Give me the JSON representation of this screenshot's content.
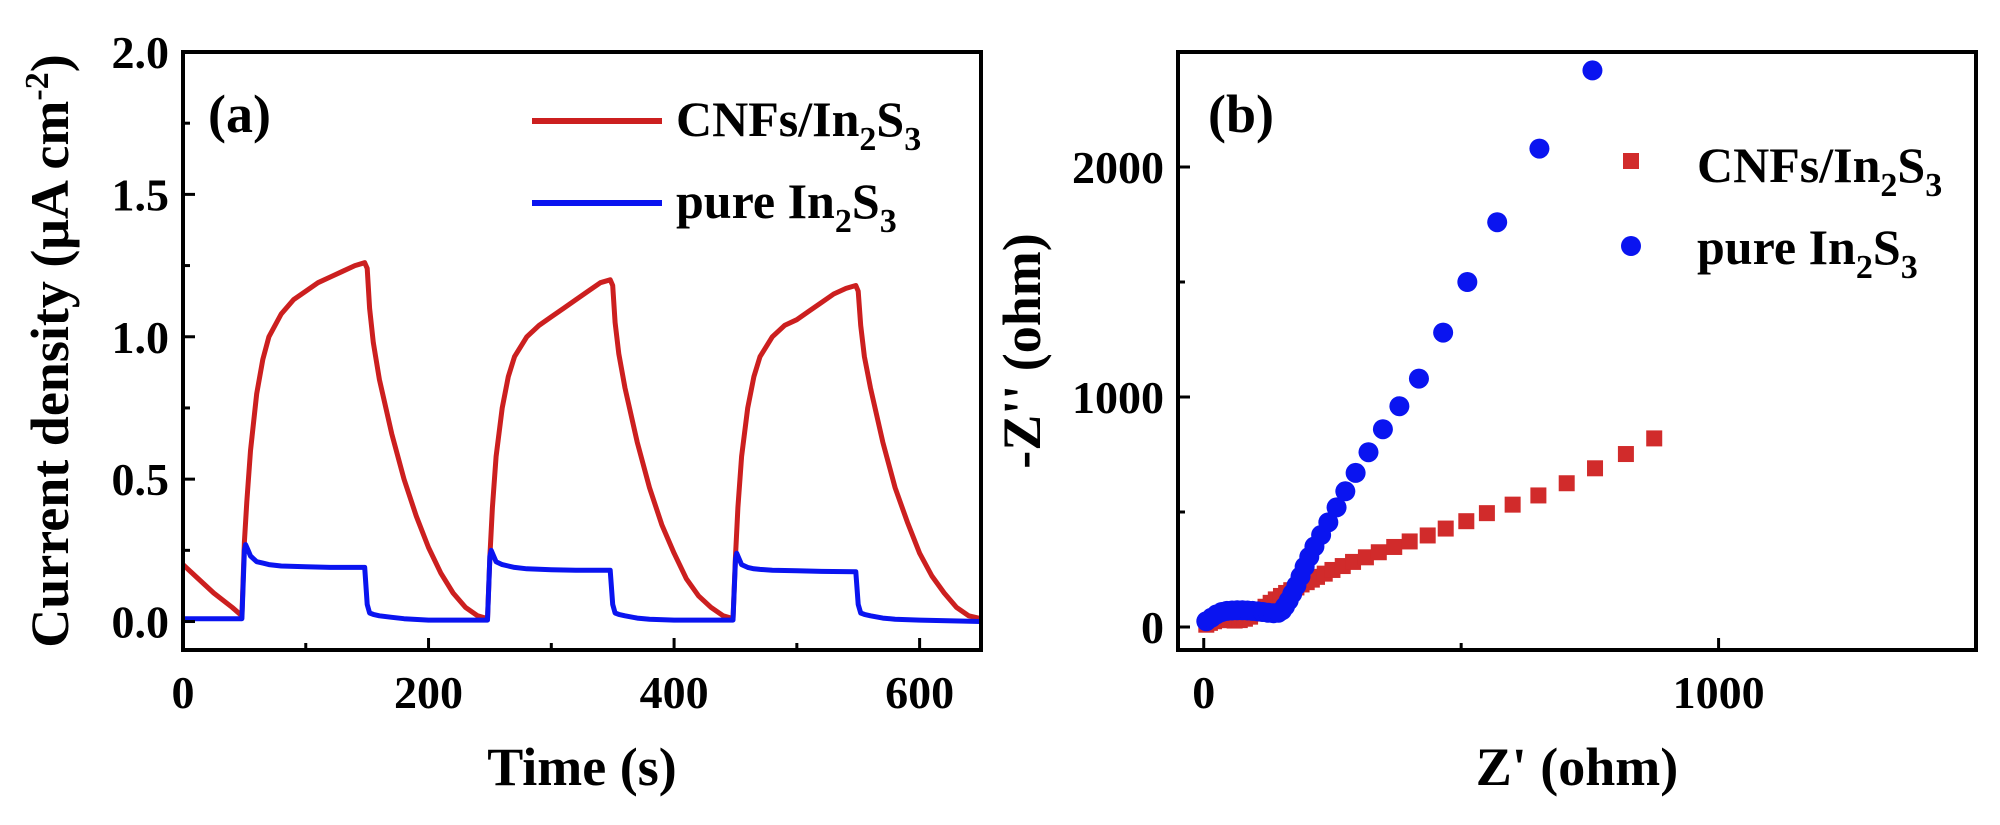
{
  "chart_data": [
    {
      "type": "line",
      "panel_label": "(a)",
      "xlabel": "Time (s)",
      "ylabel": "Current density (μA cm",
      "ylabel_sup": "-2",
      "ylabel_end": ")",
      "xlim": [
        0,
        650
      ],
      "ylim": [
        -0.1,
        2.0
      ],
      "xticks": [
        0,
        200,
        400,
        600
      ],
      "xtick_labels": [
        "0",
        "200",
        "400",
        "600"
      ],
      "yticks": [
        0.0,
        0.5,
        1.0,
        1.5,
        2.0
      ],
      "ytick_labels": [
        "0.0",
        "0.5",
        "1.0",
        "1.5",
        "2.0"
      ],
      "legend_position": "top-right",
      "series": [
        {
          "name": "CNFs/In2S3",
          "label_main": "CNFs/In",
          "label_sub1": "2",
          "label_mid": "S",
          "label_sub2": "3",
          "color": "#cc1f1f",
          "x": [
            0,
            10,
            25,
            40,
            48,
            50,
            52,
            55,
            60,
            65,
            70,
            80,
            90,
            100,
            110,
            120,
            130,
            140,
            148,
            150,
            152,
            155,
            160,
            170,
            180,
            190,
            200,
            210,
            220,
            230,
            240,
            248,
            250,
            252,
            255,
            260,
            265,
            270,
            280,
            290,
            300,
            310,
            320,
            330,
            340,
            348,
            350,
            352,
            355,
            360,
            370,
            380,
            390,
            400,
            410,
            420,
            430,
            440,
            448,
            450,
            452,
            455,
            460,
            465,
            470,
            480,
            490,
            500,
            510,
            520,
            530,
            540,
            548,
            550,
            552,
            555,
            560,
            570,
            580,
            590,
            600,
            610,
            620,
            630,
            640,
            650
          ],
          "y": [
            0.2,
            0.16,
            0.1,
            0.05,
            0.02,
            0.28,
            0.42,
            0.6,
            0.8,
            0.92,
            1.0,
            1.08,
            1.13,
            1.16,
            1.19,
            1.21,
            1.23,
            1.25,
            1.26,
            1.24,
            1.1,
            0.98,
            0.85,
            0.66,
            0.5,
            0.37,
            0.26,
            0.17,
            0.1,
            0.05,
            0.02,
            0.01,
            0.23,
            0.4,
            0.58,
            0.75,
            0.86,
            0.93,
            1.0,
            1.04,
            1.07,
            1.1,
            1.13,
            1.16,
            1.19,
            1.2,
            1.18,
            1.05,
            0.94,
            0.82,
            0.63,
            0.47,
            0.34,
            0.24,
            0.15,
            0.09,
            0.05,
            0.02,
            0.01,
            0.23,
            0.4,
            0.58,
            0.75,
            0.86,
            0.93,
            1.0,
            1.04,
            1.06,
            1.09,
            1.12,
            1.15,
            1.17,
            1.18,
            1.16,
            1.04,
            0.93,
            0.82,
            0.63,
            0.47,
            0.35,
            0.24,
            0.16,
            0.1,
            0.05,
            0.02,
            0.01
          ]
        },
        {
          "name": "pure In2S3",
          "label_main": "pure In",
          "label_sub1": "2",
          "label_mid": "S",
          "label_sub2": "3",
          "color": "#0a14f0",
          "x": [
            0,
            48,
            50,
            51,
            53,
            55,
            60,
            65,
            70,
            80,
            100,
            120,
            148,
            150,
            152,
            155,
            160,
            170,
            180,
            200,
            248,
            250,
            251,
            253,
            255,
            260,
            265,
            270,
            280,
            300,
            320,
            348,
            350,
            352,
            355,
            360,
            370,
            380,
            400,
            448,
            450,
            451,
            453,
            455,
            460,
            465,
            470,
            480,
            500,
            520,
            548,
            550,
            552,
            555,
            560,
            570,
            580,
            600,
            650
          ],
          "y": [
            0.01,
            0.01,
            0.25,
            0.27,
            0.25,
            0.23,
            0.21,
            0.205,
            0.2,
            0.195,
            0.192,
            0.19,
            0.19,
            0.06,
            0.03,
            0.025,
            0.02,
            0.015,
            0.01,
            0.005,
            0.005,
            0.23,
            0.25,
            0.23,
            0.21,
            0.2,
            0.195,
            0.19,
            0.185,
            0.182,
            0.18,
            0.18,
            0.06,
            0.03,
            0.025,
            0.02,
            0.012,
            0.008,
            0.005,
            0.005,
            0.22,
            0.24,
            0.22,
            0.2,
            0.19,
            0.185,
            0.183,
            0.18,
            0.178,
            0.176,
            0.175,
            0.06,
            0.03,
            0.025,
            0.02,
            0.012,
            0.008,
            0.005,
            0.0
          ]
        }
      ]
    },
    {
      "type": "scatter",
      "panel_label": "(b)",
      "xlabel": "Z' (ohm)",
      "ylabel": "-Z'' (ohm)",
      "xlim": [
        -50,
        1500
      ],
      "ylim": [
        -100,
        2500
      ],
      "xticks": [
        0,
        1000
      ],
      "xtick_labels": [
        "0",
        "1000"
      ],
      "yticks": [
        0,
        1000,
        2000
      ],
      "ytick_labels": [
        "0",
        "1000",
        "2000"
      ],
      "legend_position": "top-right",
      "series": [
        {
          "name": "CNFs/In2S3",
          "label_main": "CNFs/In",
          "label_sub1": "2",
          "label_mid": "S",
          "label_sub2": "3",
          "marker": "square",
          "color": "#d12b2b",
          "x": [
            5,
            12,
            20,
            30,
            40,
            50,
            60,
            70,
            80,
            90,
            100,
            110,
            120,
            130,
            140,
            150,
            160,
            170,
            180,
            190,
            200,
            210,
            220,
            235,
            250,
            270,
            290,
            315,
            340,
            370,
            400,
            435,
            470,
            510,
            550,
            600,
            650,
            705,
            760,
            820,
            875
          ],
          "y": [
            10,
            18,
            25,
            30,
            32,
            30,
            28,
            30,
            36,
            45,
            58,
            72,
            88,
            105,
            120,
            135,
            148,
            160,
            172,
            185,
            195,
            206,
            218,
            232,
            248,
            265,
            283,
            303,
            325,
            348,
            372,
            398,
            428,
            460,
            495,
            532,
            572,
            625,
            690,
            752,
            820
          ]
        },
        {
          "name": "pure In2S3",
          "label_main": "pure In",
          "label_sub1": "2",
          "label_mid": "S",
          "label_sub2": "3",
          "marker": "circle",
          "color": "#0a14f0",
          "x": [
            5,
            15,
            25,
            35,
            45,
            55,
            65,
            75,
            85,
            95,
            105,
            115,
            125,
            135,
            145,
            152,
            158,
            165,
            172,
            180,
            188,
            196,
            205,
            215,
            228,
            242,
            258,
            275,
            295,
            320,
            348,
            380,
            418,
            465,
            512,
            570,
            652,
            755
          ],
          "y": [
            25,
            40,
            55,
            65,
            70,
            72,
            73,
            73,
            72,
            70,
            68,
            65,
            62,
            60,
            62,
            72,
            90,
            115,
            145,
            180,
            220,
            262,
            305,
            350,
            400,
            455,
            520,
            590,
            670,
            760,
            860,
            960,
            1080,
            1280,
            1500,
            1760,
            2080,
            2420
          ]
        }
      ]
    }
  ]
}
